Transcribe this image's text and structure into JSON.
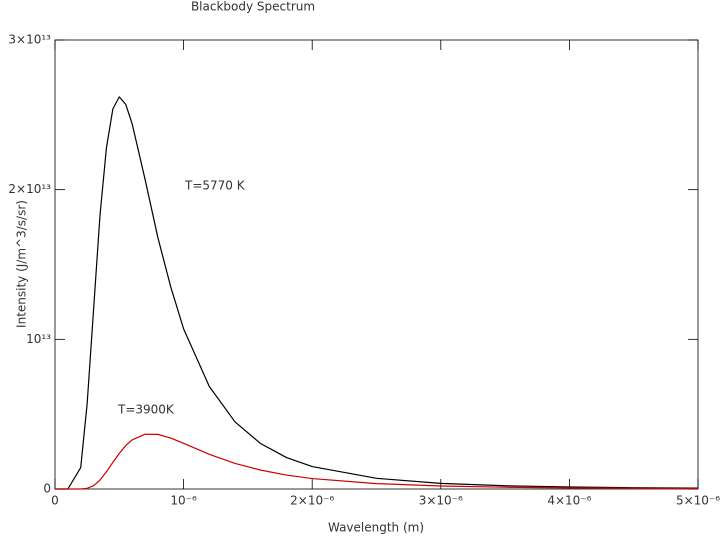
{
  "chart_data": {
    "type": "line",
    "title": "Blackbody Spectrum",
    "x_label": "Wavelength (m)",
    "y_label": "Intensity (J/m^3/s/sr)",
    "x": [
      0,
      1e-07,
      2e-07,
      2.5e-07,
      3e-07,
      3.5e-07,
      4e-07,
      4.5e-07,
      5e-07,
      5.5e-07,
      6e-07,
      7e-07,
      8e-07,
      9e-07,
      1e-06,
      1.2e-06,
      1.4e-06,
      1.6e-06,
      1.8e-06,
      2e-06,
      2.5e-06,
      3e-06,
      3.5e-06,
      4e-06,
      4.5e-06,
      5e-06
    ],
    "series": [
      {
        "name": "T=5770 K",
        "color": "#000000",
        "values": [
          0,
          0,
          1430000000000.0,
          5700000000000.0,
          12000000000000.0,
          18300000000000.0,
          22800000000000.0,
          25400000000000.0,
          26200000000000.0,
          25700000000000.0,
          24400000000000.0,
          20700000000000.0,
          16800000000000.0,
          13500000000000.0,
          10700000000000.0,
          6850000000000.0,
          4480000000000.0,
          3030000000000.0,
          2100000000000.0,
          1500000000000.0,
          713000000000.0,
          378000000000.0,
          218000000000.0,
          134000000000.0,
          87200000000.0,
          58900000000.0
        ]
      },
      {
        "name": "T=3900K",
        "color": "#cc0000",
        "values": [
          0,
          0,
          0,
          47600000000.0,
          224000000000.0,
          600000000000.0,
          1150000000000.0,
          1780000000000.0,
          2380000000000.0,
          2900000000000.0,
          3280000000000.0,
          3660000000000.0,
          3650000000000.0,
          3400000000000.0,
          3050000000000.0,
          2320000000000.0,
          1710000000000.0,
          1260000000000.0,
          932000000000.0,
          699000000000.0,
          361000000000.0,
          202000000000.0,
          121000000000.0,
          76800000000.0,
          50800000000.0,
          34900000000.0
        ]
      }
    ],
    "xlim": [
      0,
      5e-06
    ],
    "ylim": [
      0,
      30000000000000.0
    ],
    "xticks": [
      0,
      {
        "value": 1e-06,
        "label": "10⁻⁶"
      },
      {
        "value": 2e-06,
        "label": "2×10⁻⁶"
      },
      {
        "value": 3e-06,
        "label": "3×10⁻⁶"
      },
      {
        "value": 4e-06,
        "label": "4×10⁻⁶"
      },
      {
        "value": 5e-06,
        "label": "5×10⁻⁶"
      }
    ],
    "yticks": [
      0,
      {
        "value": 10000000000000.0,
        "label": "10¹³"
      },
      {
        "value": 20000000000000.0,
        "label": "2×10¹³"
      },
      {
        "value": 30000000000000.0,
        "label": "3×10¹³"
      }
    ],
    "grid": false
  }
}
